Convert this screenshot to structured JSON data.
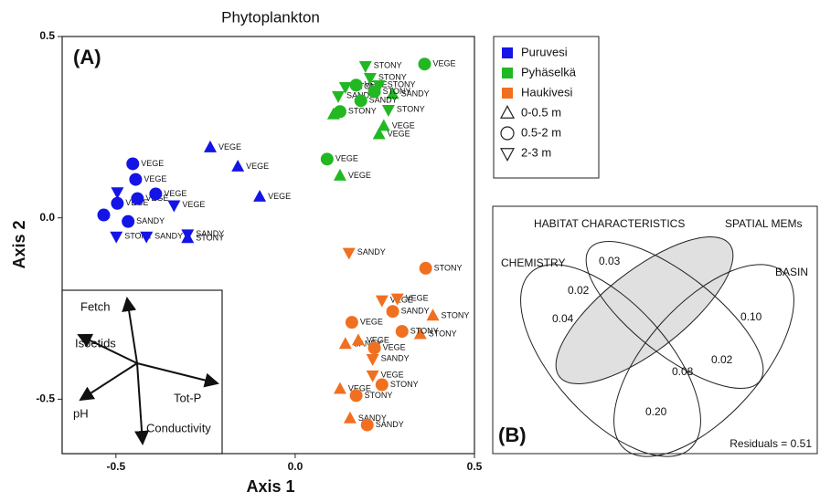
{
  "chart_data": [
    {
      "type": "scatter",
      "title": "Phytoplankton",
      "panel_label": "(A)",
      "x_label": "Axis 1",
      "y_label": "Axis 2",
      "xlim": [
        -0.65,
        0.5
      ],
      "ylim": [
        -0.65,
        0.5
      ],
      "xticks": [
        -0.5,
        {
          "value": 0,
          "label": "0.0"
        },
        0.5
      ],
      "yticks": [
        -0.5,
        {
          "value": 0,
          "label": "0.0"
        },
        0.5
      ],
      "series": [
        {
          "name": "Puruvesi",
          "color": "#1414e6",
          "x": [
            -0.237,
            -0.16,
            -0.099,
            -0.453,
            -0.445,
            -0.534,
            -0.496,
            -0.44,
            -0.389,
            -0.499,
            -0.415,
            -0.3,
            -0.3,
            -0.338,
            -0.496,
            -0.466
          ],
          "y": [
            0.194,
            0.141,
            0.058,
            0.149,
            0.106,
            0.008,
            0.04,
            0.053,
            0.066,
            -0.051,
            -0.051,
            -0.045,
            -0.056,
            0.035,
            0.071,
            -0.01
          ],
          "markers": [
            "triangle-up",
            "triangle-up",
            "triangle-up",
            "circle",
            "circle",
            "circle",
            "circle",
            "circle",
            "circle",
            "triangle-down",
            "triangle-down",
            "triangle-down",
            "triangle-up",
            "triangle-down",
            "triangle-down",
            "circle"
          ],
          "point_labels": [
            "VEGE",
            "VEGE",
            "VEGE",
            "VEGE",
            "VEGE",
            null,
            "VEGE",
            "VEGE",
            "VEGE",
            "STONY",
            "SANDY",
            "SANDY",
            "STONY",
            "VEGE",
            null,
            "SANDY"
          ]
        },
        {
          "name": "Pyhäselkä",
          "color": "#22b822",
          "x": [
            0.361,
            0.089,
            0.125,
            0.247,
            0.234,
            0.196,
            0.12,
            0.14,
            0.125,
            0.107,
            0.17,
            0.209,
            0.272,
            0.183,
            0.234,
            0.221,
            0.26
          ],
          "y": [
            0.424,
            0.162,
            0.116,
            0.253,
            0.23,
            0.419,
            0.336,
            0.361,
            0.293,
            0.285,
            0.366,
            0.386,
            0.341,
            0.323,
            0.366,
            0.348,
            0.298
          ],
          "markers": [
            "circle",
            "circle",
            "triangle-up",
            "triangle-up",
            "triangle-up",
            "triangle-down",
            "triangle-down",
            "triangle-down",
            "circle",
            "triangle-up",
            "circle",
            "triangle-down",
            "triangle-up",
            "circle",
            "triangle-down",
            "circle",
            "triangle-down"
          ],
          "point_labels": [
            "VEGE",
            "VEGE",
            "VEGE",
            "VEGE",
            "VEGE",
            "STONY",
            "SANDY",
            "STONY",
            "STONY",
            null,
            "VEGE",
            "STONY",
            "SANDY",
            "SANDY",
            "STONY",
            "STONY",
            "STONY"
          ]
        },
        {
          "name": "Haukivesi",
          "color": "#f07020",
          "x": [
            0.15,
            0.364,
            0.158,
            0.242,
            0.285,
            0.384,
            0.272,
            0.14,
            0.176,
            0.221,
            0.349,
            0.216,
            0.216,
            0.242,
            0.125,
            0.17,
            0.153,
            0.201,
            0.298
          ],
          "y": [
            -0.096,
            -0.139,
            -0.288,
            -0.227,
            -0.222,
            -0.27,
            -0.258,
            -0.348,
            -0.338,
            -0.359,
            -0.321,
            -0.389,
            -0.434,
            -0.46,
            -0.472,
            -0.49,
            -0.553,
            -0.571,
            -0.313
          ],
          "markers": [
            "triangle-down",
            "circle",
            "circle",
            "triangle-down",
            "triangle-down",
            "triangle-up",
            "circle",
            "triangle-up",
            "triangle-up",
            "circle",
            "triangle-up",
            "triangle-down",
            "triangle-down",
            "circle",
            "triangle-up",
            "circle",
            "triangle-up",
            "circle",
            "circle"
          ],
          "point_labels": [
            "SANDY",
            "STONY",
            "VEGE",
            "VEGE",
            "VEGE",
            "STONY",
            "SANDY",
            "SANDY",
            "VEGE",
            "VEGE",
            "STONY",
            "SANDY",
            "VEGE",
            "STONY",
            "VEGE",
            "STONY",
            "SANDY",
            "SANDY",
            "STONY"
          ]
        }
      ],
      "depth_legend": [
        {
          "name": "0-0.5 m",
          "marker": "triangle-up"
        },
        {
          "name": "0.5-2 m",
          "marker": "circle"
        },
        {
          "name": "2-3 m",
          "marker": "triangle-down"
        }
      ],
      "vectors": [
        "Fetch",
        "Isoetids",
        "Tot-P",
        "pH",
        "Conductivity"
      ]
    }
  ],
  "venn": {
    "panel_label": "(B)",
    "sets": [
      "HABITAT  CHARACTERISTICS",
      "SPATIAL MEMs",
      "CHEMISTRY",
      "BASIN"
    ],
    "regions": [
      "0.03",
      "0.02",
      "0.04",
      "0.10",
      "0.08",
      "0.02",
      "0.20"
    ],
    "residuals": "Residuals = 0.51"
  }
}
